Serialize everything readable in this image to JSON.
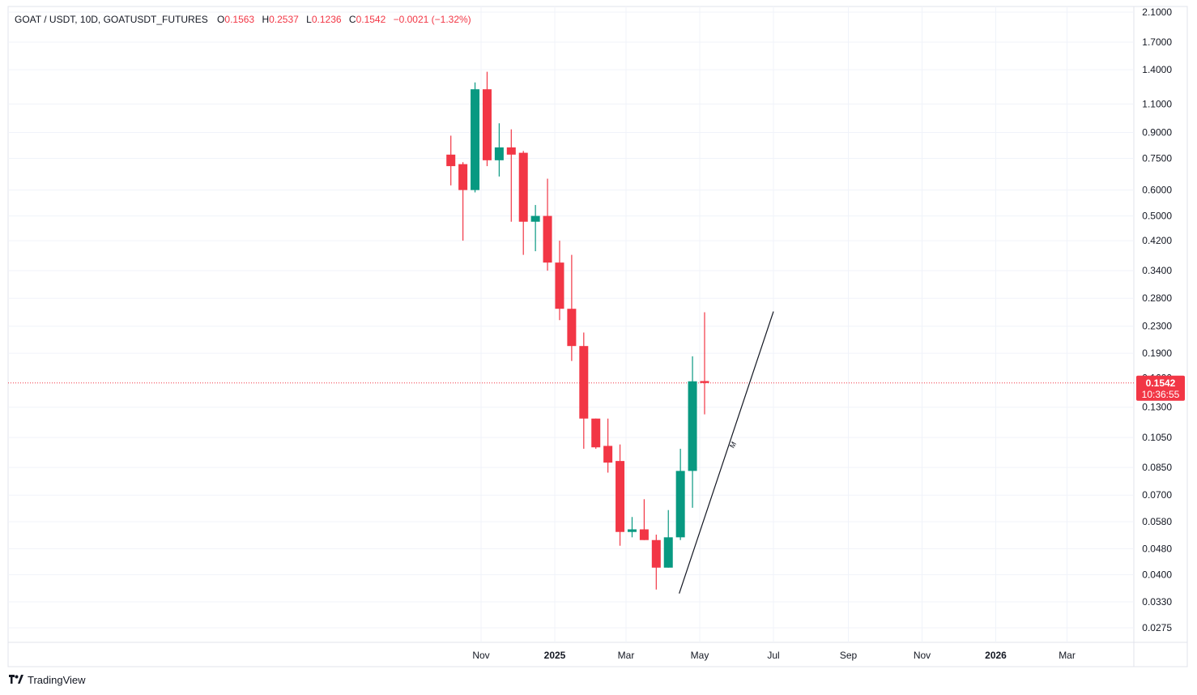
{
  "legend": {
    "symbol": "GOAT / USDT, 10D, GOATUSDT_FUTURES",
    "o_label": "O",
    "o_value": "0.1563",
    "h_label": "H",
    "h_value": "0.2537",
    "l_label": "L",
    "l_value": "0.1236",
    "c_label": "C",
    "c_value": "0.1542",
    "change": "−0.0021 (−1.32%)"
  },
  "brand": {
    "name": "TradingView",
    "logo_icon": "tradingview-logo-icon"
  },
  "colors": {
    "up": "#089981",
    "down": "#f23645",
    "grid": "#f0f3fa",
    "axis_text": "#131722",
    "price_line": "#f23645"
  },
  "price_label": {
    "price": "0.1542",
    "countdown": "10:36:55"
  },
  "chart_data": {
    "type": "candlestick",
    "scale": "log",
    "grid": true,
    "ylim": [
      0.023,
      2.15
    ],
    "y_ticks": [
      "2.1000",
      "1.7000",
      "1.4000",
      "1.1000",
      "0.9000",
      "0.7500",
      "0.6000",
      "0.5000",
      "0.4200",
      "0.3400",
      "0.2800",
      "0.2300",
      "0.1900",
      "0.1300",
      "0.1050",
      "0.0850",
      "0.0700",
      "0.0580",
      "0.0480",
      "0.0400",
      "0.0330",
      "0.0275"
    ],
    "hidden_tick": "0.1600",
    "x_labels": [
      {
        "label": "Nov",
        "date": "2024-11-01",
        "bold": false
      },
      {
        "label": "2025",
        "date": "2025-01-01",
        "bold": true
      },
      {
        "label": "Mar",
        "date": "2025-03-01",
        "bold": false
      },
      {
        "label": "May",
        "date": "2025-05-01",
        "bold": false
      },
      {
        "label": "Jul",
        "date": "2025-07-01",
        "bold": false
      },
      {
        "label": "Sep",
        "date": "2025-09-01",
        "bold": false
      },
      {
        "label": "Nov",
        "date": "2025-11-01",
        "bold": false
      },
      {
        "label": "2026",
        "date": "2026-01-01",
        "bold": true
      },
      {
        "label": "Mar",
        "date": "2026-03-01",
        "bold": false
      }
    ],
    "candles": [
      {
        "date": "2024-10-07",
        "o": 0.77,
        "h": 0.88,
        "l": 0.62,
        "c": 0.71
      },
      {
        "date": "2024-10-17",
        "o": 0.72,
        "h": 0.73,
        "l": 0.42,
        "c": 0.6
      },
      {
        "date": "2024-10-27",
        "o": 0.6,
        "h": 1.28,
        "l": 0.59,
        "c": 1.22
      },
      {
        "date": "2024-11-06",
        "o": 1.22,
        "h": 1.38,
        "l": 0.71,
        "c": 0.74
      },
      {
        "date": "2024-11-16",
        "o": 0.74,
        "h": 0.96,
        "l": 0.66,
        "c": 0.81
      },
      {
        "date": "2024-11-26",
        "o": 0.81,
        "h": 0.92,
        "l": 0.48,
        "c": 0.77
      },
      {
        "date": "2024-12-06",
        "o": 0.78,
        "h": 0.79,
        "l": 0.38,
        "c": 0.48
      },
      {
        "date": "2024-12-16",
        "o": 0.48,
        "h": 0.54,
        "l": 0.39,
        "c": 0.5
      },
      {
        "date": "2024-12-26",
        "o": 0.5,
        "h": 0.65,
        "l": 0.34,
        "c": 0.36
      },
      {
        "date": "2025-01-05",
        "o": 0.36,
        "h": 0.42,
        "l": 0.24,
        "c": 0.26
      },
      {
        "date": "2025-01-15",
        "o": 0.26,
        "h": 0.38,
        "l": 0.18,
        "c": 0.2
      },
      {
        "date": "2025-01-25",
        "o": 0.2,
        "h": 0.22,
        "l": 0.097,
        "c": 0.12
      },
      {
        "date": "2025-02-04",
        "o": 0.12,
        "h": 0.12,
        "l": 0.097,
        "c": 0.098
      },
      {
        "date": "2025-02-14",
        "o": 0.099,
        "h": 0.12,
        "l": 0.082,
        "c": 0.088
      },
      {
        "date": "2025-02-24",
        "o": 0.089,
        "h": 0.1,
        "l": 0.049,
        "c": 0.054
      },
      {
        "date": "2025-03-06",
        "o": 0.054,
        "h": 0.06,
        "l": 0.052,
        "c": 0.055
      },
      {
        "date": "2025-03-16",
        "o": 0.055,
        "h": 0.068,
        "l": 0.051,
        "c": 0.051
      },
      {
        "date": "2025-03-26",
        "o": 0.051,
        "h": 0.053,
        "l": 0.036,
        "c": 0.042
      },
      {
        "date": "2025-04-05",
        "o": 0.042,
        "h": 0.063,
        "l": 0.042,
        "c": 0.052
      },
      {
        "date": "2025-04-15",
        "o": 0.052,
        "h": 0.097,
        "l": 0.051,
        "c": 0.083
      },
      {
        "date": "2025-04-25",
        "o": 0.083,
        "h": 0.186,
        "l": 0.064,
        "c": 0.156
      },
      {
        "date": "2025-05-05",
        "o": 0.1563,
        "h": 0.2537,
        "l": 0.1236,
        "c": 0.1542
      }
    ],
    "last_price": 0.1542,
    "trendline": {
      "start": {
        "date": "2025-04-14",
        "price": 0.035
      },
      "end": {
        "date": "2025-07-01",
        "price": 0.255
      }
    },
    "annotation": {
      "text": "M",
      "date": "2025-05-29",
      "price": 0.097
    }
  }
}
